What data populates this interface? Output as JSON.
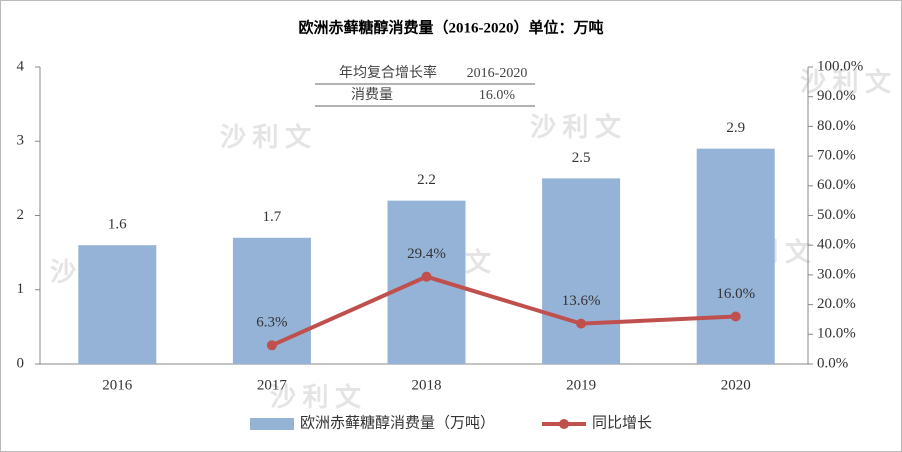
{
  "chart_data": {
    "type": "bar",
    "title": "欧洲赤藓糖醇消费量（2016-2020）单位：万吨",
    "watermark": "沙 利 文",
    "cagr_table": {
      "header": [
        "年均复合增长率",
        "2016-2020"
      ],
      "row": [
        "消费量",
        "16.0%"
      ]
    },
    "categories": [
      "2016",
      "2017",
      "2018",
      "2019",
      "2020"
    ],
    "series": [
      {
        "name": "欧洲赤藓糖醇消费量（万吨）",
        "type": "bar",
        "color": "#95b3d7",
        "values": [
          1.6,
          1.7,
          2.2,
          2.5,
          2.9
        ]
      },
      {
        "name": "同比增长",
        "type": "line",
        "axis": "y2",
        "color": "#c0504d",
        "values": [
          null,
          6.3,
          29.4,
          13.6,
          16.0
        ],
        "value_labels": [
          null,
          "6.3%",
          "29.4%",
          "13.6%",
          "16.0%"
        ]
      }
    ],
    "ylim": [
      0,
      4
    ],
    "yticks": [
      0,
      1,
      2,
      3,
      4
    ],
    "y2lim": [
      0,
      100
    ],
    "y2ticks": [
      {
        "value": 0,
        "label": "0.0%"
      },
      {
        "value": 10,
        "label": "10.0%"
      },
      {
        "value": 20,
        "label": "20.0%"
      },
      {
        "value": 30,
        "label": "30.0%"
      },
      {
        "value": 40,
        "label": "40.0%"
      },
      {
        "value": 50,
        "label": "50.0%"
      },
      {
        "value": 60,
        "label": "60.0%"
      },
      {
        "value": 70,
        "label": "70.0%"
      },
      {
        "value": 80,
        "label": "80.0%"
      },
      {
        "value": 90,
        "label": "90.0%"
      },
      {
        "value": 100,
        "label": "100.0%"
      }
    ],
    "legend": "bottom"
  }
}
